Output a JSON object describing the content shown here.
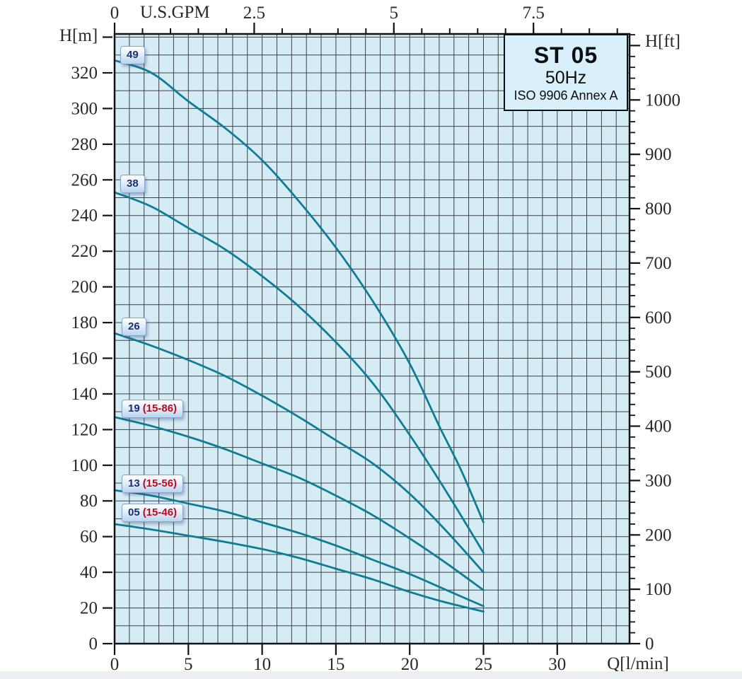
{
  "colors": {
    "page_bg": "#ffffff",
    "plot_bg": "#d5ecf5",
    "grid": "#3b424a",
    "frame": "#101418",
    "curve": "#0f7c96",
    "tick_text": "#26292b",
    "chip_main_text": "#1b2f73",
    "chip_range_text": "#bb0a1e",
    "title_box_bg": "#d9effa"
  },
  "title_box": {
    "model": "ST 05",
    "frequency": "50Hz",
    "standard": "ISO 9906 Annex A"
  },
  "axes": {
    "x_bottom": {
      "label": "Q[l/min]",
      "major_ticks": [
        0,
        5,
        10,
        15,
        20,
        25,
        30
      ],
      "minor_step": 1,
      "minor_max": 34,
      "max": 34.9
    },
    "x_top": {
      "label": "U.S.GPM",
      "major_ticks": [
        0,
        2.5,
        5,
        7.5
      ],
      "minor_step": 0.5,
      "minor_max": 9,
      "lpm_per_gpm": 3.7854
    },
    "y_left": {
      "label": "H[m]",
      "major_ticks": [
        0,
        20,
        40,
        60,
        80,
        100,
        120,
        140,
        160,
        180,
        200,
        220,
        240,
        260,
        280,
        300,
        320
      ],
      "unlabeled_tick": 340,
      "minor_step": 10,
      "minor_max": 340,
      "max": 341.8
    },
    "y_right": {
      "label": "H[ft]",
      "major_ticks": [
        0,
        100,
        200,
        300,
        400,
        500,
        600,
        700,
        800,
        900,
        1000
      ],
      "unlabeled_tick": 1100,
      "minor_step": 20,
      "minor_max": 1120,
      "m_per_ft": 0.3048
    }
  },
  "chart_data": {
    "type": "line",
    "title": "ST 05 50Hz ISO 9906 Annex A submersible pump head-flow curves",
    "xlabel": "Q[l/min]",
    "x2label": "U.S.GPM",
    "ylabel": "H[m]",
    "y2label": "H[ft]",
    "xlim": [
      0,
      34.9
    ],
    "ylim": [
      0,
      341.8
    ],
    "grid": {
      "x_step_lpm": 1,
      "y_step_m": 10
    },
    "legend_position": "chips-at-curve-start",
    "series": [
      {
        "name": "49",
        "label_main": "49",
        "label_range": "",
        "points": [
          [
            0,
            327
          ],
          [
            2.5,
            320
          ],
          [
            5,
            304
          ],
          [
            7.5,
            289
          ],
          [
            10,
            271
          ],
          [
            12.5,
            248
          ],
          [
            15,
            222
          ],
          [
            17.5,
            192
          ],
          [
            20,
            157
          ],
          [
            22,
            122
          ],
          [
            23.5,
            97
          ],
          [
            25,
            68
          ]
        ]
      },
      {
        "name": "38",
        "label_main": "38",
        "label_range": "",
        "points": [
          [
            0,
            253
          ],
          [
            2.5,
            245
          ],
          [
            5,
            233
          ],
          [
            7.5,
            221
          ],
          [
            10,
            206
          ],
          [
            12.5,
            189
          ],
          [
            15,
            169
          ],
          [
            17.5,
            146
          ],
          [
            20,
            117
          ],
          [
            22.5,
            85
          ],
          [
            25,
            51
          ]
        ]
      },
      {
        "name": "26",
        "label_main": "26",
        "label_range": "",
        "points": [
          [
            0,
            174
          ],
          [
            2.5,
            167
          ],
          [
            5,
            159
          ],
          [
            7.5,
            150
          ],
          [
            10,
            139
          ],
          [
            12.5,
            127
          ],
          [
            15,
            114
          ],
          [
            17.5,
            101
          ],
          [
            20,
            84
          ],
          [
            22.5,
            63
          ],
          [
            25,
            40
          ]
        ]
      },
      {
        "name": "19 (15-86)",
        "label_main": "19",
        "label_range": "(15-86)",
        "points": [
          [
            0,
            127
          ],
          [
            2.5,
            122
          ],
          [
            5,
            116
          ],
          [
            7.5,
            109
          ],
          [
            10,
            101
          ],
          [
            12.5,
            93
          ],
          [
            15,
            83
          ],
          [
            17.5,
            72
          ],
          [
            20,
            59
          ],
          [
            22.5,
            45
          ],
          [
            25,
            30
          ]
        ]
      },
      {
        "name": "13 (15-56)",
        "label_main": "13",
        "label_range": "(15-56)",
        "points": [
          [
            0,
            86
          ],
          [
            2.5,
            83
          ],
          [
            5,
            78.5
          ],
          [
            7.5,
            74
          ],
          [
            10,
            68
          ],
          [
            12.5,
            62
          ],
          [
            15,
            55
          ],
          [
            17.5,
            47
          ],
          [
            20,
            39
          ],
          [
            22.5,
            30
          ],
          [
            25,
            21
          ]
        ]
      },
      {
        "name": "05 (15-46)",
        "label_main": "05",
        "label_range": "(15-46)",
        "points": [
          [
            0,
            67
          ],
          [
            2.5,
            64
          ],
          [
            5,
            60.5
          ],
          [
            7.5,
            57
          ],
          [
            10,
            53
          ],
          [
            12.5,
            48
          ],
          [
            15,
            42
          ],
          [
            17.5,
            36
          ],
          [
            20,
            29
          ],
          [
            22.5,
            23
          ],
          [
            25,
            18
          ]
        ]
      }
    ]
  }
}
